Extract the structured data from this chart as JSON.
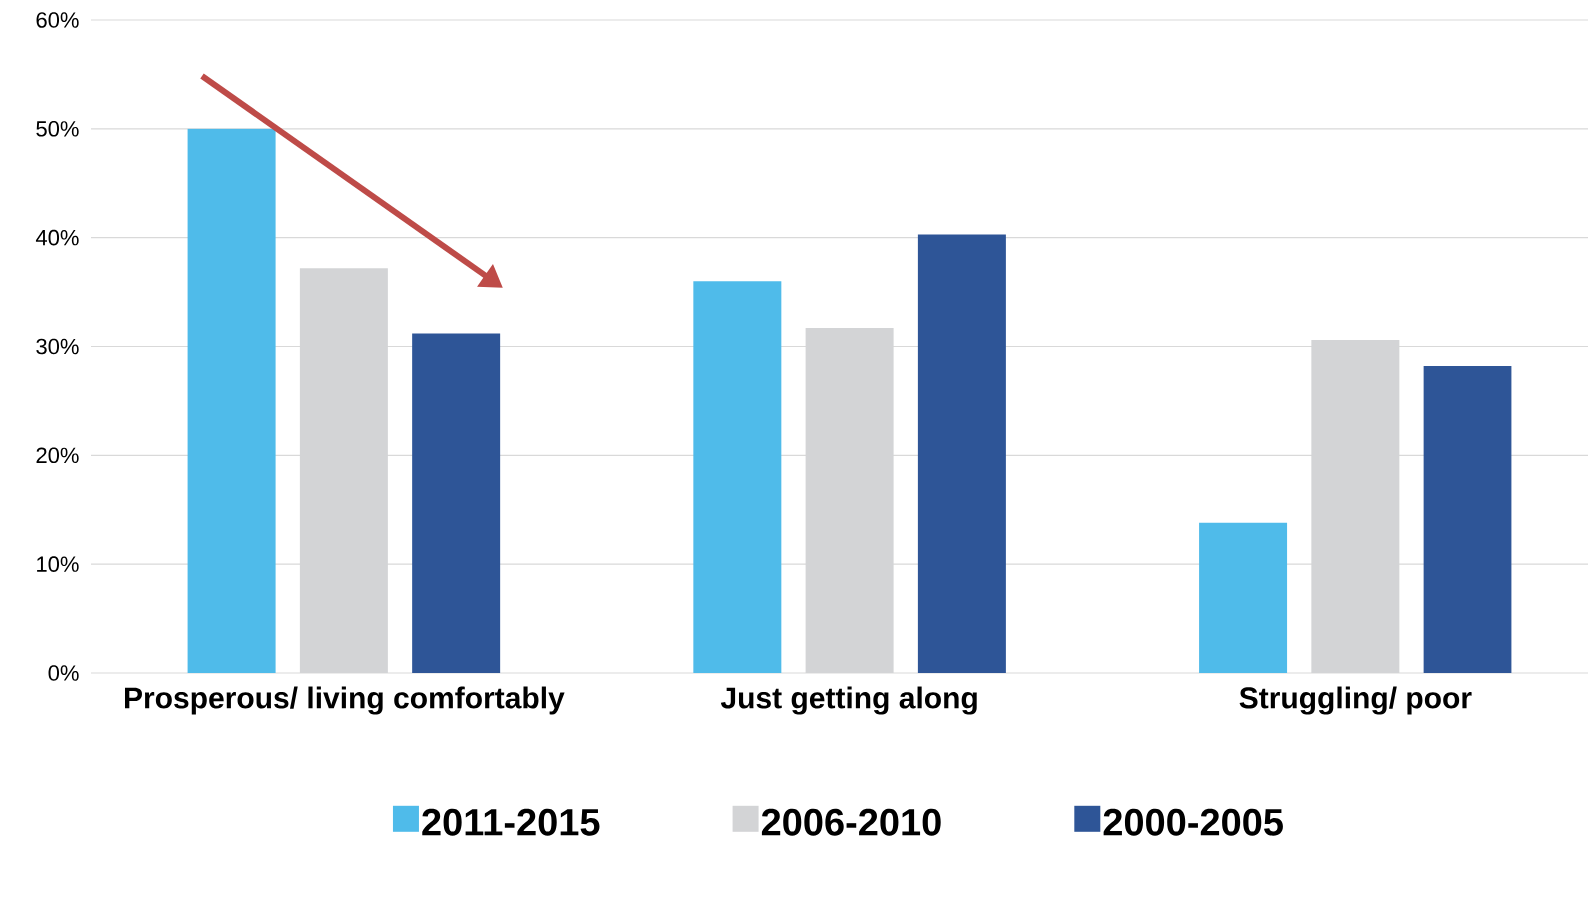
{
  "chart_data": {
    "type": "bar",
    "categories": [
      "Prosperous/ living comfortably",
      "Just getting along",
      "Struggling/ poor"
    ],
    "series": [
      {
        "name": "2011-2015",
        "color": "#4fbbea",
        "values": [
          50.0,
          36.0,
          13.8
        ]
      },
      {
        "name": "2006-2010",
        "color": "#d3d4d6",
        "values": [
          37.2,
          31.7,
          30.6
        ]
      },
      {
        "name": "2000-2005",
        "color": "#2e5597",
        "values": [
          31.2,
          40.3,
          28.2
        ]
      }
    ],
    "ylim": [
      0,
      60
    ],
    "yticks": [
      {
        "value": 0,
        "label": "0%"
      },
      {
        "value": 10,
        "label": "10%"
      },
      {
        "value": 20,
        "label": "20%"
      },
      {
        "value": 30,
        "label": "30%"
      },
      {
        "value": 40,
        "label": "40%"
      },
      {
        "value": 50,
        "label": "50%"
      },
      {
        "value": 60,
        "label": "60%"
      }
    ],
    "grid": "y",
    "legend": "bottom"
  }
}
